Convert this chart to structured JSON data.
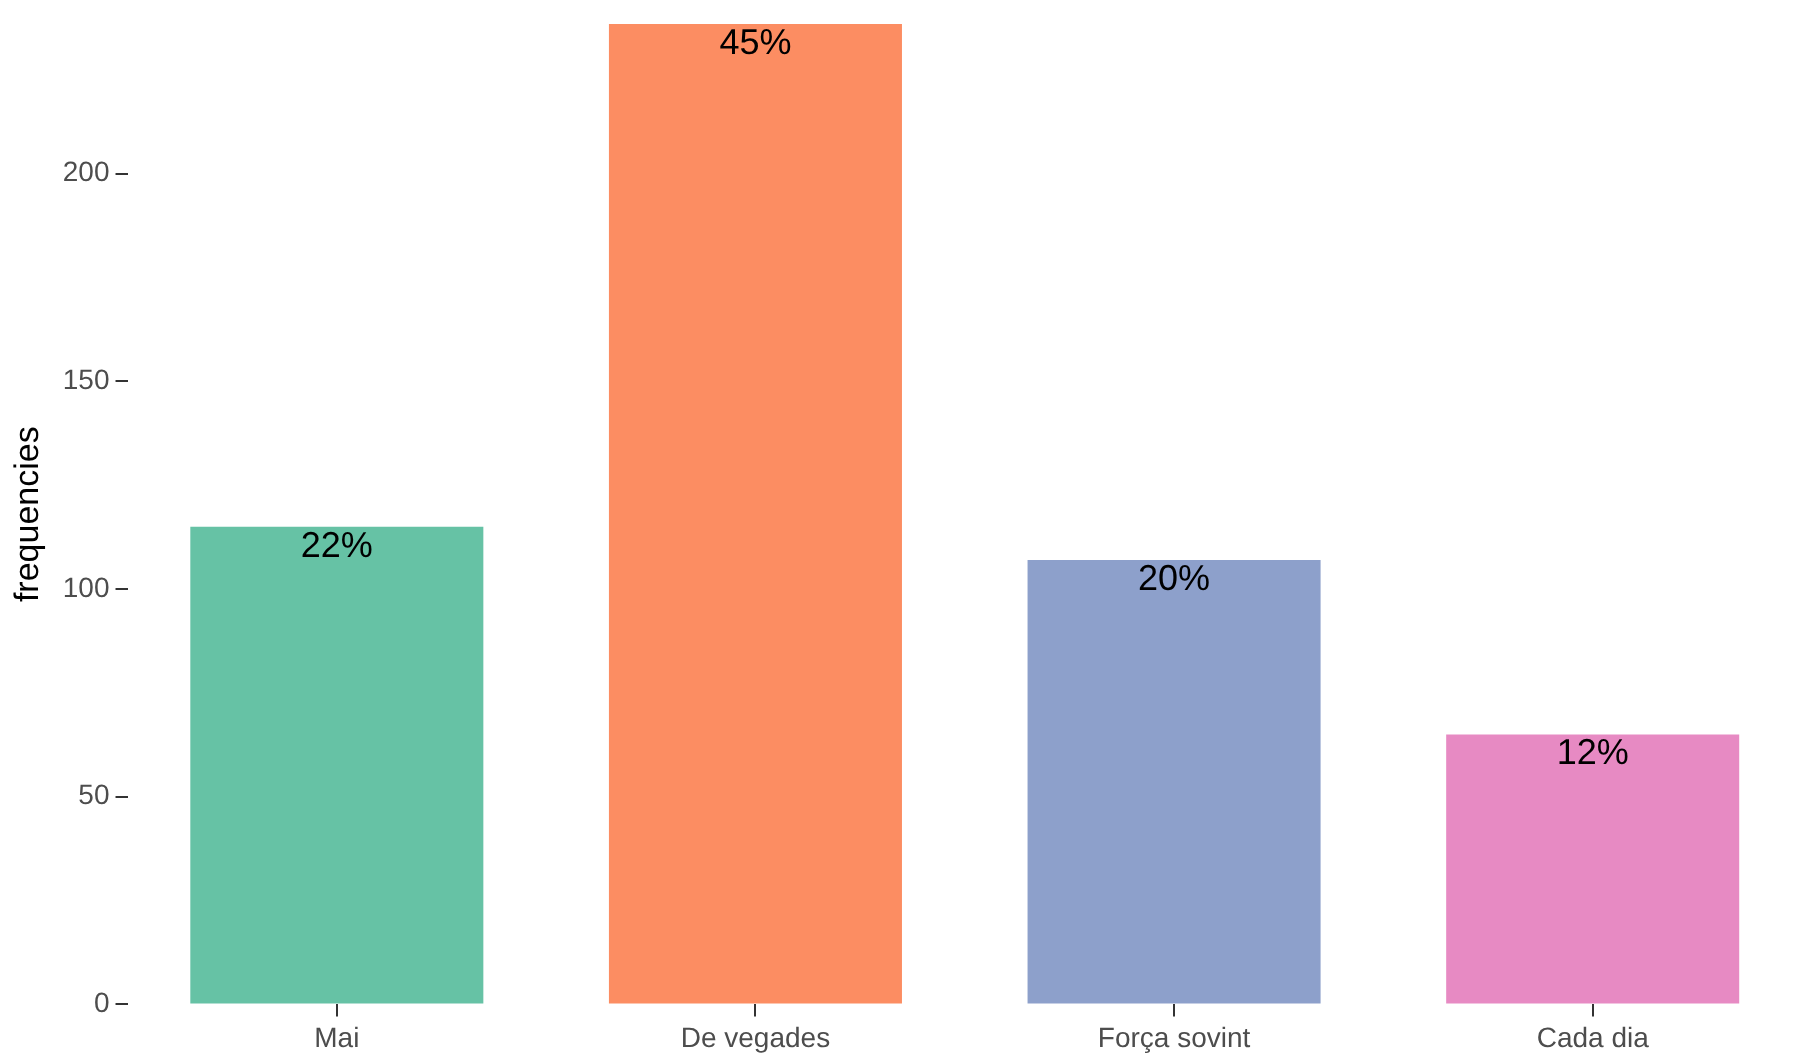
{
  "chart_data": {
    "type": "bar",
    "ylabel": "frequencies",
    "categories": [
      "Mai",
      "De vegades",
      "Força sovint",
      "Cada dia"
    ],
    "values": [
      115,
      236,
      107,
      65
    ],
    "colors": [
      "#66c2a5",
      "#fc8d62",
      "#8da0cb",
      "#e78ac3"
    ],
    "annotations": [
      {
        "text": "22%",
        "x": "Mai",
        "y": 115
      },
      {
        "text": "45%",
        "x": "De vegades",
        "y": 236
      },
      {
        "text": "20%",
        "x": "Força sovint",
        "y": 107
      },
      {
        "text": "12%",
        "x": "Cada dia",
        "y": 65
      }
    ],
    "ylim": [
      0,
      236
    ],
    "yticks": [
      0,
      50,
      100,
      150,
      200
    ],
    "grid": false,
    "legend": false
  }
}
